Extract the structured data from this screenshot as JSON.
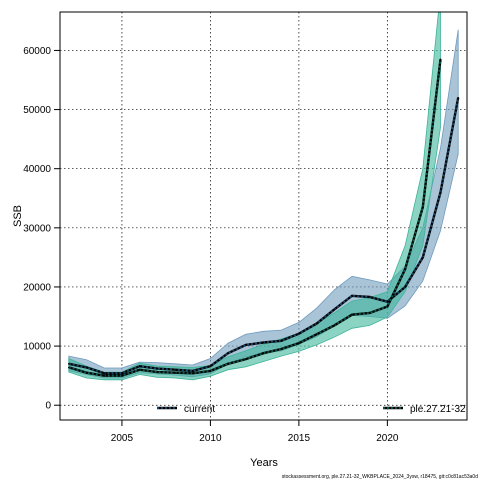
{
  "chart_data": {
    "type": "line",
    "xlabel": "Years",
    "ylabel": "SSB",
    "xlim": [
      2001.5,
      2024.5
    ],
    "ylim": [
      -2500,
      66500
    ],
    "xticks": [
      2005,
      2010,
      2015,
      2020
    ],
    "yticks": [
      0,
      10000,
      20000,
      30000,
      40000,
      50000,
      60000
    ],
    "grid": true,
    "legend_placement": "bottom",
    "series": [
      {
        "name": "current",
        "color": "#1a4a6e",
        "band_color": "#6f9bbd",
        "x": [
          2002,
          2003,
          2004,
          2005,
          2006,
          2007,
          2008,
          2009,
          2010,
          2011,
          2012,
          2013,
          2014,
          2015,
          2016,
          2017,
          2018,
          2019,
          2020,
          2021,
          2022,
          2023,
          2024
        ],
        "values": [
          7000,
          6400,
          5400,
          5400,
          6600,
          6200,
          6000,
          5800,
          6600,
          8800,
          10200,
          10600,
          10900,
          12100,
          13800,
          16200,
          18500,
          18300,
          17500,
          20000,
          25000,
          36000,
          52000
        ],
        "lower": [
          5800,
          5200,
          4600,
          4600,
          5500,
          5300,
          5100,
          4800,
          5300,
          7000,
          8200,
          8800,
          9200,
          10300,
          11600,
          13400,
          15200,
          15000,
          14700,
          16800,
          21000,
          29500,
          42500
        ],
        "upper": [
          8300,
          7700,
          6300,
          6300,
          7300,
          7200,
          7000,
          6800,
          7900,
          10500,
          12000,
          12500,
          12700,
          14000,
          16400,
          19500,
          21800,
          21200,
          20500,
          23500,
          30000,
          43500,
          63500
        ]
      },
      {
        "name": "ple.27.21-32",
        "color": "#0d5c4e",
        "band_color": "#3db59a",
        "x": [
          2002,
          2003,
          2004,
          2005,
          2006,
          2007,
          2008,
          2009,
          2010,
          2011,
          2012,
          2013,
          2014,
          2015,
          2016,
          2017,
          2018,
          2019,
          2020,
          2021,
          2022,
          2023
        ],
        "values": [
          6400,
          5500,
          5000,
          5000,
          6000,
          5600,
          5500,
          5400,
          5800,
          7000,
          7800,
          8800,
          9500,
          10500,
          12000,
          13500,
          15300,
          15600,
          16700,
          23000,
          33500,
          58500
        ],
        "lower": [
          5600,
          4600,
          4300,
          4300,
          5200,
          4700,
          4600,
          4300,
          4900,
          6000,
          6500,
          7400,
          8300,
          9100,
          10200,
          11500,
          13000,
          13500,
          14900,
          19200,
          27000,
          47000
        ],
        "upper": [
          7900,
          6600,
          5600,
          5600,
          7100,
          6600,
          6500,
          6400,
          6700,
          8200,
          9200,
          10300,
          11200,
          12200,
          13900,
          15600,
          17600,
          18200,
          19200,
          27000,
          40000,
          70000
        ]
      }
    ],
    "legend": [
      {
        "label": "current"
      },
      {
        "label": "ple.27.21-32"
      }
    ]
  },
  "footer": "stockassessment.org, ple.27.21-32_WKBPLACE_2024_3ysw, r18475, git:c0c81ac53a0d"
}
